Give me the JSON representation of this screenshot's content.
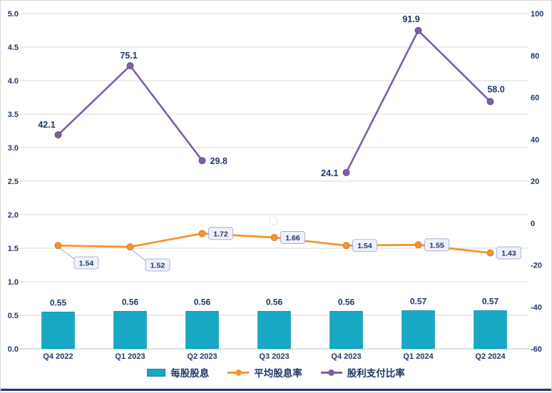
{
  "colors": {
    "text_navy": "#1f3864",
    "gridline": "#d9d9d9",
    "bar_teal": "#17a8c4",
    "line_orange": "#f69430",
    "line_purple": "#7d5fa5",
    "label_box_fill": "#eef0fb",
    "label_box_border": "#9fa3c7",
    "bottom_border": "#1f3864"
  },
  "chart_data": {
    "type": "combo",
    "title": "",
    "categories": [
      "Q4 2022",
      "Q1 2023",
      "Q2 2023",
      "Q3 2023",
      "Q4 2023",
      "Q1 2024",
      "Q2 2024"
    ],
    "series": [
      {
        "name": "每股股息",
        "type": "bar",
        "axis": "left",
        "color": "#17a8c4",
        "label_decimals": 2,
        "values": [
          0.55,
          0.56,
          0.56,
          0.56,
          0.56,
          0.57,
          0.57
        ]
      },
      {
        "name": "平均股息率",
        "type": "line",
        "axis": "left",
        "color": "#f69430",
        "label_decimals": 2,
        "values": [
          1.54,
          1.52,
          1.72,
          1.66,
          1.54,
          1.55,
          1.43
        ]
      },
      {
        "name": "股利支付比率",
        "type": "line",
        "axis": "right",
        "color": "#7d5fa5",
        "label_decimals": 1,
        "values": [
          42.1,
          75.1,
          29.8,
          null,
          24.1,
          91.9,
          58.0
        ]
      }
    ],
    "left_axis": {
      "min": 0,
      "max": 5,
      "step": 0.5,
      "tick_decimals": 1
    },
    "right_axis": {
      "min": -60,
      "max": 100,
      "step": 20,
      "tick_decimals": 0
    },
    "grid": true,
    "legend_position": "bottom"
  }
}
